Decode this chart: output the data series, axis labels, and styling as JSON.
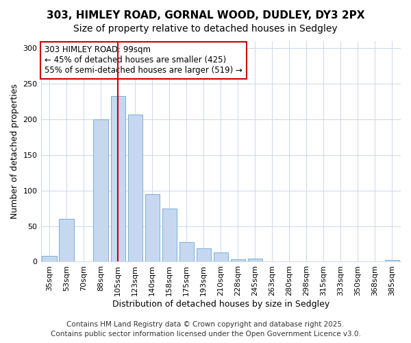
{
  "title1": "303, HIMLEY ROAD, GORNAL WOOD, DUDLEY, DY3 2PX",
  "title2": "Size of property relative to detached houses in Sedgley",
  "xlabel": "Distribution of detached houses by size in Sedgley",
  "ylabel": "Number of detached properties",
  "categories": [
    "35sqm",
    "53sqm",
    "70sqm",
    "88sqm",
    "105sqm",
    "123sqm",
    "140sqm",
    "158sqm",
    "175sqm",
    "193sqm",
    "210sqm",
    "228sqm",
    "245sqm",
    "263sqm",
    "280sqm",
    "298sqm",
    "315sqm",
    "333sqm",
    "350sqm",
    "368sqm",
    "385sqm"
  ],
  "values": [
    8,
    60,
    0,
    200,
    233,
    207,
    95,
    75,
    27,
    19,
    13,
    3,
    4,
    0,
    0,
    0,
    0,
    0,
    0,
    0,
    2
  ],
  "bar_color": "#c5d8f0",
  "bar_edge_color": "#7badd4",
  "annotation_box_text": "303 HIMLEY ROAD: 99sqm\n← 45% of detached houses are smaller (425)\n55% of semi-detached houses are larger (519) →",
  "annotation_box_color": "#ffffff",
  "annotation_box_edge_color": "#cc0000",
  "vline_x_index": 4,
  "vline_color": "#cc0000",
  "footer1": "Contains HM Land Registry data © Crown copyright and database right 2025.",
  "footer2": "Contains public sector information licensed under the Open Government Licence v3.0.",
  "bg_color": "#ffffff",
  "plot_bg_color": "#ffffff",
  "ylim": [
    0,
    310
  ],
  "yticks": [
    0,
    50,
    100,
    150,
    200,
    250,
    300
  ],
  "title_fontsize": 11,
  "subtitle_fontsize": 10,
  "tick_fontsize": 8,
  "ylabel_fontsize": 9,
  "xlabel_fontsize": 9,
  "annotation_fontsize": 8.5,
  "footer_fontsize": 7.5
}
